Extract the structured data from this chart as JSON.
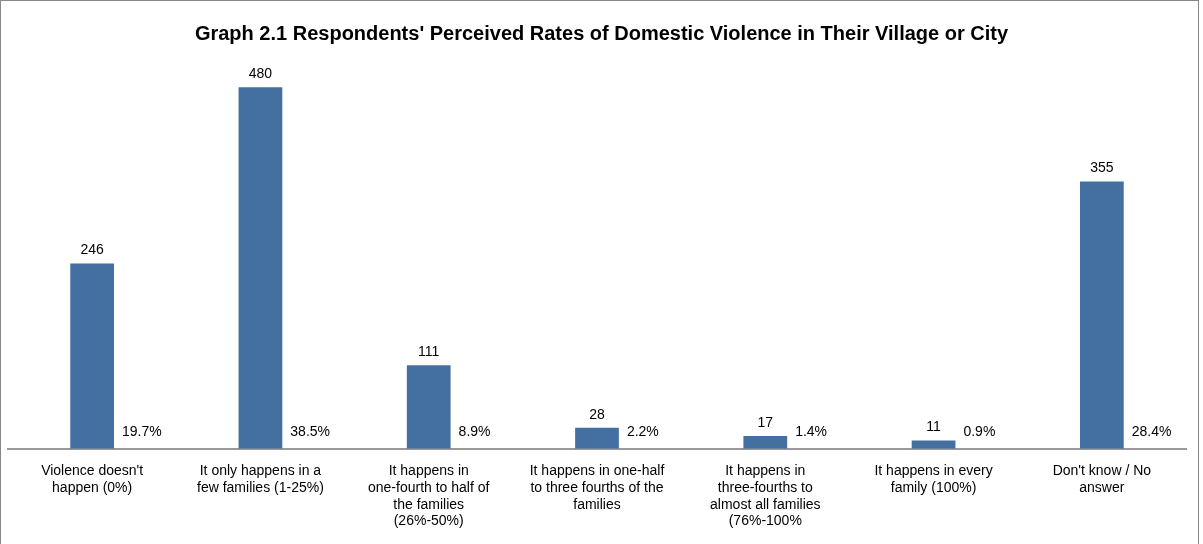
{
  "chart_data": {
    "type": "bar",
    "title": "Graph 2.1 Respondents' Perceived Rates of Domestic Violence in Their Village or City",
    "categories": [
      "Violence doesn't happen (0%)",
      "It only happens in a few families (1-25%)",
      "It happens in one-fourth to half of the families (26%-50%)",
      "It happens in one-half to three fourths of the families",
      "It happens in three-fourths to almost all families (76%-100%",
      "It happens in every family (100%)",
      "Don't know / No answer"
    ],
    "values": [
      246,
      480,
      111,
      28,
      17,
      11,
      355
    ],
    "color": "#4470a1",
    "data_labels": true,
    "legend": false,
    "annotations": [
      {
        "text": "19.7%",
        "x": "Violence doesn't happen (0%)",
        "y": 0
      },
      {
        "text": "38.5%",
        "x": "It only happens in a few families (1-25%)",
        "y": 0
      },
      {
        "text": "8.9%",
        "x": "It happens in one-fourth to half of the families (26%-50%)",
        "y": 0
      },
      {
        "text": "2.2%",
        "x": "It happens in one-half to three fourths of the families",
        "y": 0
      },
      {
        "text": "1.4%",
        "x": "It happens in three-fourths to almost all families (76%-100%",
        "y": 0
      },
      {
        "text": "0.9%",
        "x": "It happens in every family (100%)",
        "y": 0
      },
      {
        "text": "28.4%",
        "x": "Don't know / No answer",
        "y": 0
      }
    ]
  }
}
